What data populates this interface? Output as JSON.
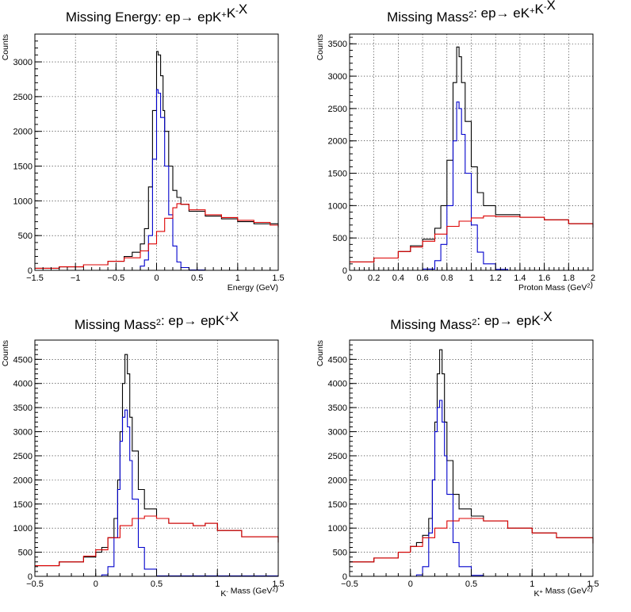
{
  "chart_data": [
    {
      "type": "line",
      "title": "Missing Energy: ep→ epK⁺K⁻X",
      "title_parts": [
        {
          "t": "Missing Energy: ep→ epK"
        },
        {
          "t": "+",
          "sup": true
        },
        {
          "t": "K"
        },
        {
          "t": "-",
          "sup": true
        },
        {
          "t": "X"
        }
      ],
      "xlabel_parts": [
        {
          "t": "Energy (GeV)"
        }
      ],
      "ylabel": "Counts",
      "xlim": [
        -1.5,
        1.5
      ],
      "ylim": [
        0,
        3400
      ],
      "xticks": [
        -1.5,
        -1,
        -0.5,
        0,
        0.5,
        1,
        1.5
      ],
      "xtick_labels": [
        "−1.5",
        "−1",
        "−0.5",
        "0",
        "0.5",
        "1",
        "1.5"
      ],
      "yticks": [
        0,
        500,
        1000,
        1500,
        2000,
        2500,
        3000
      ],
      "grid": true,
      "series": [
        {
          "color": "#000000",
          "x": [
            -1.5,
            -1.2,
            -0.9,
            -0.6,
            -0.4,
            -0.3,
            -0.2,
            -0.15,
            -0.1,
            -0.05,
            0,
            0.02,
            0.05,
            0.08,
            0.1,
            0.15,
            0.2,
            0.25,
            0.3,
            0.4,
            0.6,
            0.8,
            1.0,
            1.2,
            1.5
          ],
          "y": [
            30,
            50,
            80,
            130,
            200,
            260,
            380,
            600,
            1200,
            2300,
            3150,
            3100,
            2800,
            2300,
            2000,
            1500,
            1150,
            1050,
            950,
            850,
            780,
            740,
            700,
            670,
            620
          ]
        },
        {
          "color": "#0000cc",
          "x": [
            -1.5,
            -0.6,
            -0.4,
            -0.2,
            -0.15,
            -0.1,
            -0.05,
            0,
            0.02,
            0.05,
            0.1,
            0.15,
            0.2,
            0.25,
            0.3,
            0.4,
            0.6,
            1.5
          ],
          "y": [
            0,
            0,
            0,
            60,
            150,
            500,
            1600,
            2600,
            2550,
            2200,
            1500,
            800,
            350,
            120,
            40,
            5,
            0,
            0
          ]
        },
        {
          "color": "#dd0000",
          "x": [
            -1.5,
            -1.2,
            -0.9,
            -0.6,
            -0.4,
            -0.2,
            -0.1,
            0,
            0.1,
            0.2,
            0.25,
            0.3,
            0.4,
            0.6,
            0.8,
            1.0,
            1.2,
            1.4,
            1.5
          ],
          "y": [
            30,
            50,
            80,
            130,
            180,
            280,
            380,
            560,
            750,
            900,
            960,
            950,
            870,
            800,
            760,
            720,
            690,
            650,
            620
          ]
        }
      ]
    },
    {
      "type": "line",
      "title": "Missing Mass²: ep→ eK⁺K⁻X",
      "title_parts": [
        {
          "t": "Missing Mass"
        },
        {
          "t": "2",
          "sup": true
        },
        {
          "t": ": ep→ eK"
        },
        {
          "t": "+",
          "sup": true
        },
        {
          "t": "K"
        },
        {
          "t": "-",
          "sup": true
        },
        {
          "t": "X"
        }
      ],
      "xlabel_parts": [
        {
          "t": "Proton Mass (GeV"
        },
        {
          "t": "2",
          "sup": true
        },
        {
          "t": ")"
        }
      ],
      "ylabel": "Counts",
      "xlim": [
        0,
        2
      ],
      "ylim": [
        0,
        3650
      ],
      "xticks": [
        0,
        0.2,
        0.4,
        0.6,
        0.8,
        1,
        1.2,
        1.4,
        1.6,
        1.8,
        2
      ],
      "xtick_labels": [
        "0",
        "0.2",
        "0.4",
        "0.6",
        "0.8",
        "1",
        "1.2",
        "1.4",
        "1.6",
        "1.8",
        "2"
      ],
      "yticks": [
        0,
        500,
        1000,
        1500,
        2000,
        2500,
        3000,
        3500
      ],
      "grid": true,
      "series": [
        {
          "color": "#000000",
          "x": [
            0,
            0.2,
            0.4,
            0.5,
            0.6,
            0.7,
            0.75,
            0.8,
            0.85,
            0.88,
            0.9,
            0.92,
            0.95,
            1.0,
            1.05,
            1.1,
            1.2,
            1.4,
            1.6,
            1.8,
            2.0
          ],
          "y": [
            130,
            190,
            290,
            380,
            480,
            650,
            1000,
            1700,
            2900,
            3450,
            3300,
            2900,
            2300,
            1600,
            1200,
            1000,
            860,
            820,
            780,
            720,
            660
          ]
        },
        {
          "color": "#0000cc",
          "x": [
            0,
            0.5,
            0.6,
            0.7,
            0.75,
            0.8,
            0.85,
            0.88,
            0.9,
            0.92,
            0.95,
            1.0,
            1.05,
            1.1,
            1.2,
            1.3,
            2.0
          ],
          "y": [
            0,
            0,
            20,
            150,
            400,
            1000,
            2000,
            2600,
            2500,
            2100,
            1500,
            700,
            280,
            100,
            15,
            0,
            0
          ]
        },
        {
          "color": "#dd0000",
          "x": [
            0,
            0.2,
            0.4,
            0.5,
            0.6,
            0.7,
            0.8,
            0.9,
            1.0,
            1.1,
            1.2,
            1.4,
            1.6,
            1.8,
            2.0
          ],
          "y": [
            130,
            190,
            290,
            360,
            450,
            560,
            680,
            760,
            810,
            840,
            830,
            820,
            780,
            720,
            660
          ]
        }
      ]
    },
    {
      "type": "line",
      "title": "Missing Mass²: ep→ epK⁺X",
      "title_parts": [
        {
          "t": "Missing Mass"
        },
        {
          "t": "2",
          "sup": true
        },
        {
          "t": ": ep→ epK"
        },
        {
          "t": "+",
          "sup": true
        },
        {
          "t": "X"
        }
      ],
      "xlabel_parts": [
        {
          "t": "K"
        },
        {
          "t": "-",
          "sup": true
        },
        {
          "t": " Mass (GeV"
        },
        {
          "t": "2",
          "sup": true
        },
        {
          "t": ")"
        }
      ],
      "ylabel": "Counts",
      "xlim": [
        -0.5,
        1.5
      ],
      "ylim": [
        0,
        4900
      ],
      "xticks": [
        -0.5,
        0,
        0.5,
        1,
        1.5
      ],
      "xtick_labels": [
        "−0.5",
        "0",
        "0.5",
        "1",
        "1.5"
      ],
      "yticks": [
        0,
        500,
        1000,
        1500,
        2000,
        2500,
        3000,
        3500,
        4000,
        4500
      ],
      "grid": true,
      "series": [
        {
          "color": "#000000",
          "x": [
            -0.5,
            -0.3,
            -0.1,
            0,
            0.05,
            0.1,
            0.15,
            0.18,
            0.2,
            0.22,
            0.24,
            0.26,
            0.28,
            0.3,
            0.35,
            0.4,
            0.5,
            0.6,
            0.8,
            0.9,
            1.0,
            1.2,
            1.5
          ],
          "y": [
            220,
            300,
            400,
            500,
            600,
            800,
            1200,
            2000,
            3000,
            4000,
            4600,
            4200,
            3300,
            2600,
            1800,
            1400,
            1200,
            1100,
            1050,
            1100,
            950,
            820,
            700
          ]
        },
        {
          "color": "#0000cc",
          "x": [
            -0.5,
            0,
            0.05,
            0.1,
            0.15,
            0.18,
            0.2,
            0.22,
            0.24,
            0.26,
            0.28,
            0.3,
            0.35,
            0.4,
            0.5,
            1.5
          ],
          "y": [
            0,
            0,
            30,
            200,
            800,
            1800,
            2800,
            3300,
            3450,
            3100,
            2400,
            1600,
            600,
            150,
            10,
            0
          ]
        },
        {
          "color": "#dd0000",
          "x": [
            -0.5,
            -0.3,
            -0.1,
            0,
            0.1,
            0.2,
            0.3,
            0.4,
            0.5,
            0.6,
            0.8,
            0.9,
            1.0,
            1.2,
            1.5
          ],
          "y": [
            220,
            300,
            420,
            550,
            800,
            1050,
            1200,
            1250,
            1200,
            1100,
            1050,
            1100,
            950,
            820,
            700
          ]
        }
      ]
    },
    {
      "type": "line",
      "title": "Missing Mass²: ep→ epK⁻X",
      "title_parts": [
        {
          "t": "Missing Mass"
        },
        {
          "t": "2",
          "sup": true
        },
        {
          "t": ": ep→ epK"
        },
        {
          "t": "-",
          "sup": true
        },
        {
          "t": "X"
        }
      ],
      "xlabel_parts": [
        {
          "t": "K"
        },
        {
          "t": "+",
          "sup": true
        },
        {
          "t": " Mass (GeV"
        },
        {
          "t": "2",
          "sup": true
        },
        {
          "t": ")"
        }
      ],
      "ylabel": "Counts",
      "xlim": [
        -0.5,
        1.5
      ],
      "ylim": [
        0,
        4900
      ],
      "xticks": [
        -0.5,
        0,
        0.5,
        1,
        1.5
      ],
      "xtick_labels": [
        "−0.5",
        "0",
        "0.5",
        "1",
        "1.5"
      ],
      "yticks": [
        0,
        500,
        1000,
        1500,
        2000,
        2500,
        3000,
        3500,
        4000,
        4500
      ],
      "grid": true,
      "series": [
        {
          "color": "#000000",
          "x": [
            -0.5,
            -0.3,
            -0.1,
            0,
            0.05,
            0.1,
            0.15,
            0.18,
            0.2,
            0.22,
            0.24,
            0.26,
            0.28,
            0.3,
            0.35,
            0.4,
            0.5,
            0.6,
            0.8,
            1.0,
            1.2,
            1.5
          ],
          "y": [
            300,
            380,
            500,
            620,
            700,
            850,
            1200,
            2000,
            3200,
            4200,
            4700,
            4200,
            3200,
            2400,
            1700,
            1400,
            1250,
            1150,
            1000,
            900,
            800,
            680
          ]
        },
        {
          "color": "#0000cc",
          "x": [
            -0.5,
            0,
            0.05,
            0.1,
            0.15,
            0.18,
            0.2,
            0.22,
            0.24,
            0.26,
            0.28,
            0.3,
            0.35,
            0.4,
            0.5,
            0.6,
            1.5
          ],
          "y": [
            0,
            0,
            30,
            200,
            900,
            2000,
            3000,
            3500,
            3650,
            3200,
            2500,
            1700,
            700,
            200,
            20,
            0,
            0
          ]
        },
        {
          "color": "#dd0000",
          "x": [
            -0.5,
            -0.3,
            -0.1,
            0,
            0.1,
            0.2,
            0.3,
            0.4,
            0.5,
            0.6,
            0.8,
            1.0,
            1.2,
            1.5
          ],
          "y": [
            300,
            380,
            500,
            620,
            800,
            1000,
            1150,
            1200,
            1200,
            1150,
            1000,
            900,
            800,
            680
          ]
        }
      ]
    }
  ]
}
